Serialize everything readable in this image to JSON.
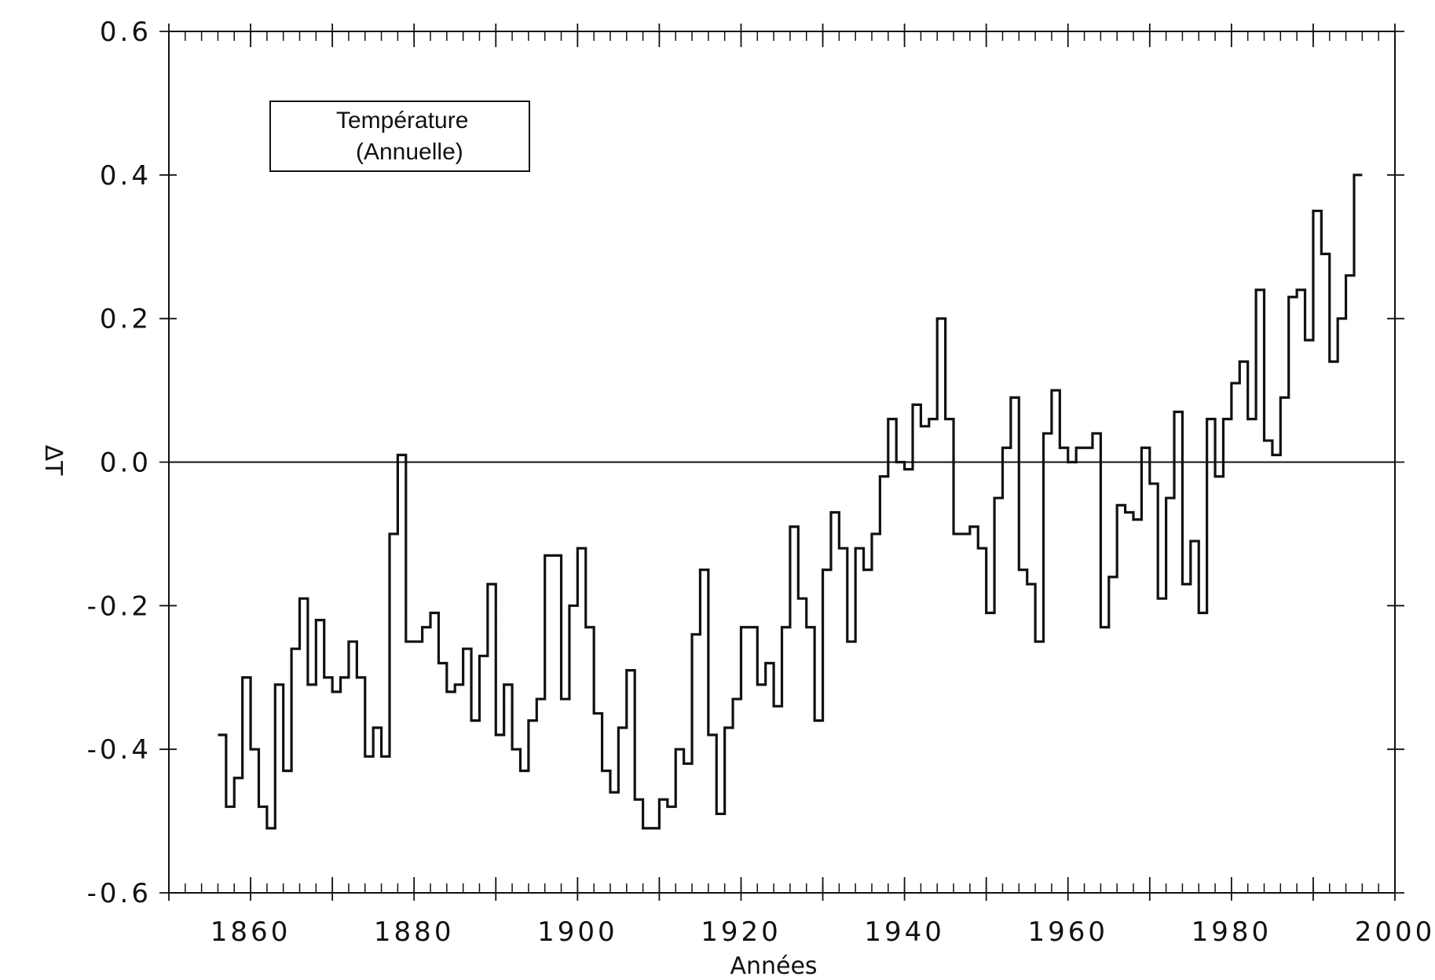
{
  "chart_data": {
    "type": "line",
    "step": true,
    "legend": {
      "line1": "Température",
      "line2": "(Annuelle)",
      "position": "top-left"
    },
    "xlabel": "Années",
    "ylabel": "ΔT",
    "xlim": [
      1850,
      2000
    ],
    "ylim": [
      -0.6,
      0.6
    ],
    "xticks": [
      "1860",
      "1880",
      "1900",
      "1920",
      "1940",
      "1960",
      "1980",
      "2000"
    ],
    "yticks": [
      "0.6",
      "0.4",
      "0.2",
      "0.0",
      "-0.2",
      "-0.4",
      "-0.6"
    ],
    "grid": false,
    "zero_line": true,
    "series": [
      {
        "x": [
          1856,
          1857,
          1858,
          1859,
          1860,
          1861,
          1862,
          1863,
          1864,
          1865,
          1866,
          1867,
          1868,
          1869,
          1870,
          1871,
          1872,
          1873,
          1874,
          1875,
          1876,
          1877,
          1878,
          1879,
          1880,
          1881,
          1882,
          1883,
          1884,
          1885,
          1886,
          1887,
          1888,
          1889,
          1890,
          1891,
          1892,
          1893,
          1894,
          1895,
          1896,
          1897,
          1898,
          1899,
          1900,
          1901,
          1902,
          1903,
          1904,
          1905,
          1906,
          1907,
          1908,
          1909,
          1910,
          1911,
          1912,
          1913,
          1914,
          1915,
          1916,
          1917,
          1918,
          1919,
          1920,
          1921,
          1922,
          1923,
          1924,
          1925,
          1926,
          1927,
          1928,
          1929,
          1930,
          1931,
          1932,
          1933,
          1934,
          1935,
          1936,
          1937,
          1938,
          1939,
          1940,
          1941,
          1942,
          1943,
          1944,
          1945,
          1946,
          1947,
          1948,
          1949,
          1950,
          1951,
          1952,
          1953,
          1954,
          1955,
          1956,
          1957,
          1958,
          1959,
          1960,
          1961,
          1962,
          1963,
          1964,
          1965,
          1966,
          1967,
          1968,
          1969,
          1970,
          1971,
          1972,
          1973,
          1974,
          1975,
          1976,
          1977,
          1978,
          1979,
          1980,
          1981,
          1982,
          1983,
          1984,
          1985,
          1986,
          1987,
          1988,
          1989,
          1990,
          1991,
          1992,
          1993,
          1994,
          1995
        ],
        "values": [
          -0.38,
          -0.48,
          -0.44,
          -0.3,
          -0.4,
          -0.48,
          -0.51,
          -0.31,
          -0.43,
          -0.26,
          -0.19,
          -0.31,
          -0.22,
          -0.3,
          -0.32,
          -0.3,
          -0.25,
          -0.3,
          -0.41,
          -0.37,
          -0.41,
          -0.1,
          0.01,
          -0.25,
          -0.25,
          -0.23,
          -0.21,
          -0.28,
          -0.32,
          -0.31,
          -0.26,
          -0.36,
          -0.27,
          -0.17,
          -0.38,
          -0.31,
          -0.4,
          -0.43,
          -0.36,
          -0.33,
          -0.13,
          -0.13,
          -0.33,
          -0.2,
          -0.12,
          -0.23,
          -0.35,
          -0.43,
          -0.46,
          -0.37,
          -0.29,
          -0.47,
          -0.51,
          -0.51,
          -0.47,
          -0.48,
          -0.4,
          -0.42,
          -0.24,
          -0.15,
          -0.38,
          -0.49,
          -0.37,
          -0.33,
          -0.23,
          -0.23,
          -0.31,
          -0.28,
          -0.34,
          -0.23,
          -0.09,
          -0.19,
          -0.23,
          -0.36,
          -0.15,
          -0.07,
          -0.12,
          -0.25,
          -0.12,
          -0.15,
          -0.1,
          -0.02,
          0.06,
          0.0,
          -0.01,
          0.08,
          0.05,
          0.06,
          0.2,
          0.06,
          -0.1,
          -0.1,
          -0.09,
          -0.12,
          -0.21,
          -0.05,
          0.02,
          0.09,
          -0.15,
          -0.17,
          -0.25,
          0.04,
          0.1,
          0.02,
          0.0,
          0.02,
          0.02,
          0.04,
          -0.23,
          -0.16,
          -0.06,
          -0.07,
          -0.08,
          0.02,
          -0.03,
          -0.19,
          -0.05,
          0.07,
          -0.17,
          -0.11,
          -0.21,
          0.06,
          -0.02,
          0.06,
          0.11,
          0.14,
          0.06,
          0.24,
          0.03,
          0.01,
          0.09,
          0.23,
          0.24,
          0.17,
          0.35,
          0.29,
          0.14,
          0.2,
          0.26,
          0.4
        ]
      }
    ]
  }
}
